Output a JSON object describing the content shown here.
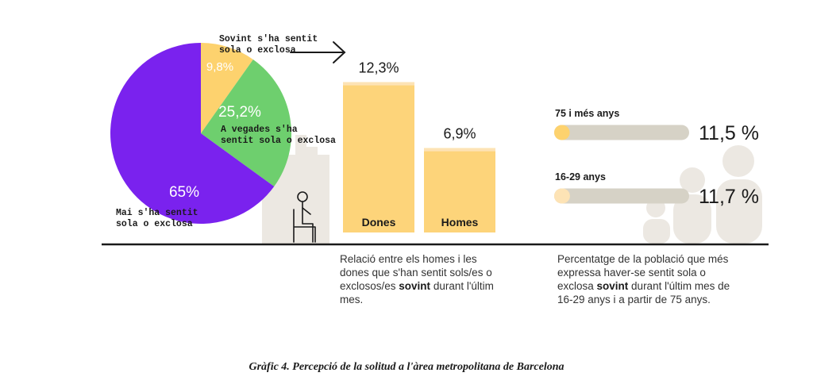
{
  "colors": {
    "purple": "#7a22ee",
    "green": "#6ecf6e",
    "yellow": "#fdd26e",
    "bar_fill": "#fdd47a",
    "bar_fill_light": "#fde3b5",
    "track": "#d6d2c6",
    "silhouette": "#ece8e2"
  },
  "chart_data": [
    {
      "type": "pie",
      "slices": [
        {
          "label_line1": "Mai s'ha sentit",
          "label_line2": "sola o exclosa",
          "value": 65,
          "display": "65%",
          "color": "#7a22ee"
        },
        {
          "label_line1": "A vegades s'ha",
          "label_line2": "sentit sola o exclosa",
          "value": 25.2,
          "display": "25,2%",
          "color": "#6ecf6e"
        },
        {
          "label_line1": "Sovint s'ha sentit",
          "label_line2": "sola o exclosa",
          "value": 9.8,
          "display": "9,8%",
          "color": "#fdd26e"
        }
      ]
    },
    {
      "type": "bar",
      "categories": [
        "Dones",
        "Homes"
      ],
      "values": [
        12.3,
        6.9
      ],
      "display": [
        "12,3%",
        "6,9%"
      ],
      "description": [
        "Relació entre els homes i les",
        "dones que s'han sentit sols/es o",
        "exclosos/es ",
        "sovint",
        " durant l'últim",
        "mes."
      ]
    },
    {
      "type": "bar",
      "orientation": "horizontal",
      "categories": [
        "75 i més anys",
        "16-29 anys"
      ],
      "values": [
        11.5,
        11.7
      ],
      "display": [
        "11,5 %",
        "11,7 %"
      ],
      "description": [
        "Percentatge de la població que més",
        "expressa haver-se sentit sola o",
        "exclosa ",
        "sovint",
        " durant l'últim mes de",
        "16-29 anys i a partir de 75 anys."
      ]
    }
  ],
  "caption": "Gràfic 4. Percepció de la solitud a l'àrea metropolitana de Barcelona"
}
